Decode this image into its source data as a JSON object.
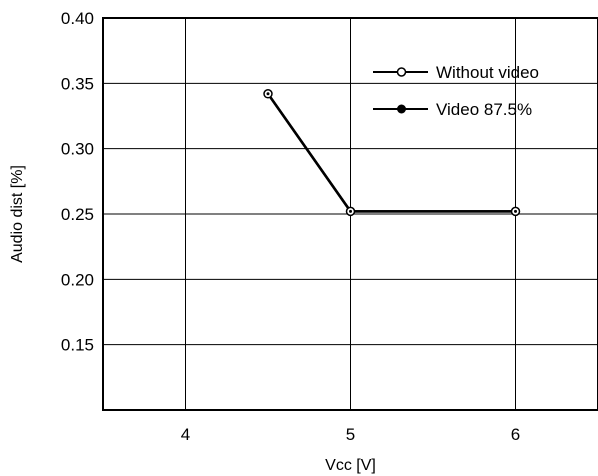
{
  "chart_data": {
    "type": "line",
    "title": "",
    "xlabel": "Vcc [V]",
    "ylabel": "Audio dist [%]",
    "xlim": [
      3.5,
      6.5
    ],
    "ylim": [
      0.1,
      0.4
    ],
    "x_ticks": [
      4,
      5,
      6
    ],
    "x_tick_labels": [
      "4",
      "5",
      "6"
    ],
    "y_ticks": [
      0.15,
      0.2,
      0.25,
      0.3,
      0.35,
      0.4
    ],
    "y_tick_labels": [
      "0.15",
      "0.20",
      "0.25",
      "0.30",
      "0.35",
      "0.40"
    ],
    "grid": true,
    "legend_position": "top-right",
    "series": [
      {
        "name": "Without video",
        "marker": "open-circle",
        "color": "#000000",
        "x": [
          4.5,
          5,
          6
        ],
        "y": [
          0.342,
          0.252,
          0.252
        ]
      },
      {
        "name": "Video 87.5%",
        "marker": "filled-circle",
        "color": "#000000",
        "x": [
          4.5,
          5,
          6
        ],
        "y": [
          0.342,
          0.252,
          0.252
        ]
      }
    ]
  }
}
